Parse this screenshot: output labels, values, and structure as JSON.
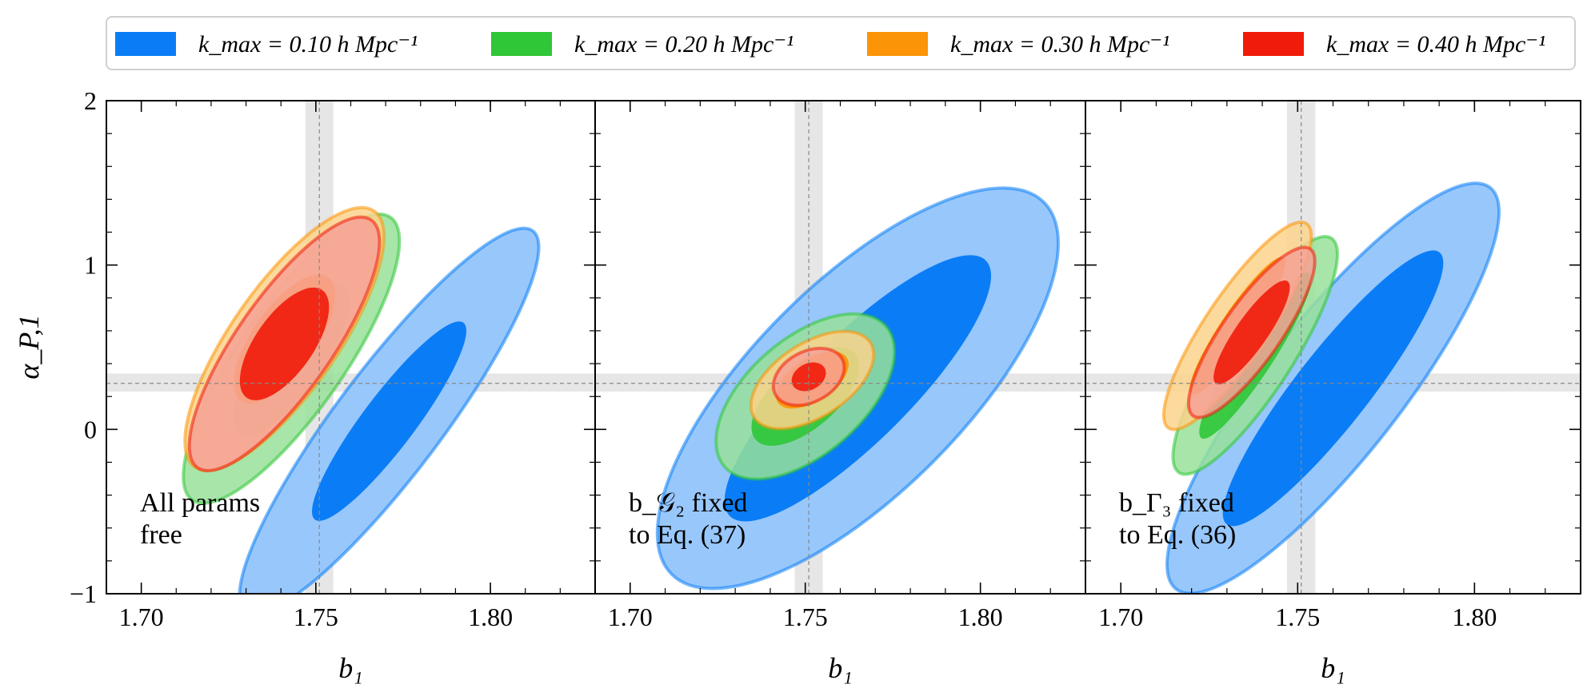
{
  "chart_data": {
    "type": "contour",
    "legend": [
      {
        "label": "k_max = 0.10 h Mpc⁻¹",
        "color": "#0a7df6",
        "light_color": "#98c7fb"
      },
      {
        "label": "k_max = 0.20 h Mpc⁻¹",
        "color": "#2fc637",
        "light_color": "#98e19a"
      },
      {
        "label": "k_max = 0.30 h Mpc⁻¹",
        "color": "#fb9407",
        "light_color": "#fbd38c"
      },
      {
        "label": "k_max = 0.40 h Mpc⁻¹",
        "color": "#f01b0a",
        "light_color": "#f7a196"
      }
    ],
    "xlabel": "b₁",
    "ylabel": "α_P,1",
    "xlim": [
      1.69,
      1.83
    ],
    "ylim": [
      -1,
      2
    ],
    "x_ticks": [
      "1.70",
      "1.75",
      "1.80"
    ],
    "y_ticks": [
      "−1",
      "0",
      "1",
      "2"
    ],
    "reference": {
      "b1": 1.751,
      "b1_band": [
        1.747,
        1.755
      ],
      "alpha": 0.28,
      "alpha_band": [
        0.23,
        0.34
      ]
    },
    "panels": [
      {
        "annotation": [
          "All params",
          "free"
        ],
        "contours": [
          {
            "kmax": 0.1,
            "cx": 1.771,
            "cy": 0.05,
            "angle": -53,
            "rx68": 0.75,
            "ry68": 0.05,
            "rx95": 1.45,
            "ry95": 0.1
          },
          {
            "kmax": 0.2,
            "cx": 1.743,
            "cy": 0.43,
            "angle": -55,
            "rx68": 0.55,
            "ry68": 0.06,
            "rx95": 1.05,
            "ry95": 0.1
          },
          {
            "kmax": 0.3,
            "cx": 1.741,
            "cy": 0.55,
            "angle": -55,
            "rx68": 0.46,
            "ry68": 0.06,
            "rx95": 0.95,
            "ry95": 0.1
          },
          {
            "kmax": 0.4,
            "cx": 1.741,
            "cy": 0.52,
            "angle": -55,
            "rx68": 0.4,
            "ry68": 0.055,
            "rx95": 0.92,
            "ry95": 0.09
          }
        ]
      },
      {
        "annotation": [
          "b_𝒢₂ fixed",
          "to Eq. (37)"
        ],
        "contours": [
          {
            "kmax": 0.1,
            "cx": 1.765,
            "cy": 0.25,
            "angle": -45,
            "rx68": 1.1,
            "ry68": 0.1,
            "rx95": 1.6,
            "ry95": 0.2
          },
          {
            "kmax": 0.2,
            "cx": 1.75,
            "cy": 0.2,
            "angle": -41,
            "rx68": 0.4,
            "ry68": 0.06,
            "rx95": 0.65,
            "ry95": 0.11
          },
          {
            "kmax": 0.3,
            "cx": 1.752,
            "cy": 0.3,
            "angle": -33,
            "rx68": 0.25,
            "ry68": 0.04,
            "rx95": 0.42,
            "ry95": 0.07
          },
          {
            "kmax": 0.4,
            "cx": 1.751,
            "cy": 0.32,
            "angle": -28,
            "rx68": 0.11,
            "ry68": 0.025,
            "rx95": 0.23,
            "ry95": 0.048
          }
        ]
      },
      {
        "annotation": [
          "b_Γ₃ fixed",
          "to Eq. (36)"
        ],
        "contours": [
          {
            "kmax": 0.1,
            "cx": 1.76,
            "cy": 0.25,
            "angle": -52,
            "rx68": 1.05,
            "ry68": 0.07,
            "rx95": 1.55,
            "ry95": 0.13
          },
          {
            "kmax": 0.2,
            "cx": 1.738,
            "cy": 0.45,
            "angle": -57,
            "rx68": 0.6,
            "ry68": 0.035,
            "rx95": 0.85,
            "ry95": 0.07
          },
          {
            "kmax": 0.3,
            "cx": 1.733,
            "cy": 0.63,
            "angle": -56,
            "rx68": 0.5,
            "ry68": 0.03,
            "rx95": 0.75,
            "ry95": 0.06
          },
          {
            "kmax": 0.4,
            "cx": 1.737,
            "cy": 0.59,
            "angle": -55,
            "rx68": 0.38,
            "ry68": 0.03,
            "rx95": 0.62,
            "ry95": 0.055
          }
        ]
      }
    ]
  }
}
